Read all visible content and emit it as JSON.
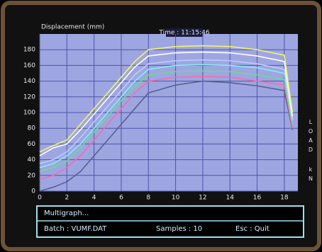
{
  "chart_data": {
    "type": "line",
    "y_label": "Displacement (mm)",
    "annotation": "Time : 11:15:46",
    "right_label": "LOAD",
    "right_unit": "kN",
    "x": [
      0,
      1,
      2,
      3,
      4,
      5,
      6,
      7,
      8,
      10,
      12,
      14,
      16,
      18,
      18.6
    ],
    "series": [
      {
        "color": "#5a5f8c",
        "values": [
          0,
          5,
          12,
          25,
          45,
          65,
          85,
          105,
          125,
          135,
          140,
          138,
          134,
          128,
          78
        ]
      },
      {
        "color": "#f070a8",
        "values": [
          15,
          20,
          30,
          45,
          65,
          85,
          105,
          125,
          140,
          145,
          146,
          145,
          140,
          135,
          80
        ]
      },
      {
        "color": "#70d890",
        "values": [
          25,
          30,
          38,
          55,
          75,
          95,
          115,
          133,
          148,
          152,
          153,
          152,
          148,
          142,
          85
        ]
      },
      {
        "color": "#80f0f0",
        "values": [
          30,
          35,
          45,
          60,
          80,
          100,
          120,
          140,
          155,
          160,
          161,
          160,
          157,
          150,
          90
        ]
      },
      {
        "color": "#c0ccff",
        "values": [
          35,
          40,
          50,
          68,
          88,
          108,
          128,
          148,
          162,
          166,
          167,
          166,
          162,
          155,
          92
        ]
      },
      {
        "color": "#ffffff",
        "values": [
          45,
          55,
          60,
          78,
          98,
          118,
          138,
          158,
          172,
          176,
          177,
          176,
          172,
          165,
          95
        ]
      },
      {
        "color": "#f4f46a",
        "values": [
          50,
          58,
          65,
          85,
          105,
          125,
          145,
          165,
          180,
          184,
          185,
          184,
          180,
          173,
          100
        ]
      }
    ],
    "xlim": [
      0,
      19
    ],
    "ylim": [
      0,
      200
    ],
    "xticks": [
      0,
      2,
      4,
      6,
      8,
      10,
      12,
      14,
      16,
      18
    ],
    "yticks": [
      0,
      20,
      40,
      60,
      80,
      100,
      120,
      140,
      160,
      180
    ],
    "grid": true
  },
  "status_panel": {
    "title": "Multigraph...",
    "batch": "Batch : VUMF.DAT",
    "samples": "Samples :  10",
    "esc": "Esc : Quit"
  }
}
